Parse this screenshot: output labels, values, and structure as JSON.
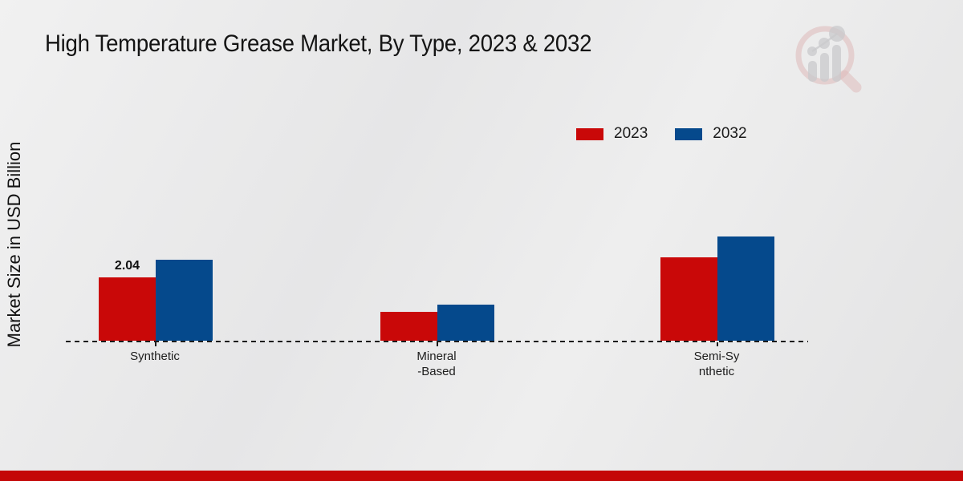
{
  "title": "High Temperature Grease Market, By Type, 2023 & 2032",
  "chart_data": {
    "type": "bar",
    "title": "High Temperature Grease Market, By Type, 2023 & 2032",
    "categories": [
      "Synthetic",
      "Mineral\n-Based",
      "Semi-Sy\nnthetic"
    ],
    "series": [
      {
        "name": "2023",
        "color": "#c90808",
        "values": [
          2.04,
          0.93,
          2.68
        ]
      },
      {
        "name": "2032",
        "color": "#05498c",
        "values": [
          2.61,
          1.17,
          3.36
        ]
      }
    ],
    "value_labels": [
      {
        "series_index": 0,
        "category_index": 0,
        "text": "2.04"
      }
    ],
    "xlabel": "",
    "ylabel": "Market Size in USD Billion",
    "ylim": [
      0,
      3.5
    ],
    "grid": "off",
    "y_axis_ticks": "none",
    "baseline_style": "dashed",
    "legend_position": "top-right"
  },
  "branding": {
    "watermark_icon": "magnifier-bar-chart-logo",
    "bottom_bar_color": "#c40707",
    "watermark_pink": "#dfb9b9",
    "watermark_gray": "#c9c9cc"
  }
}
